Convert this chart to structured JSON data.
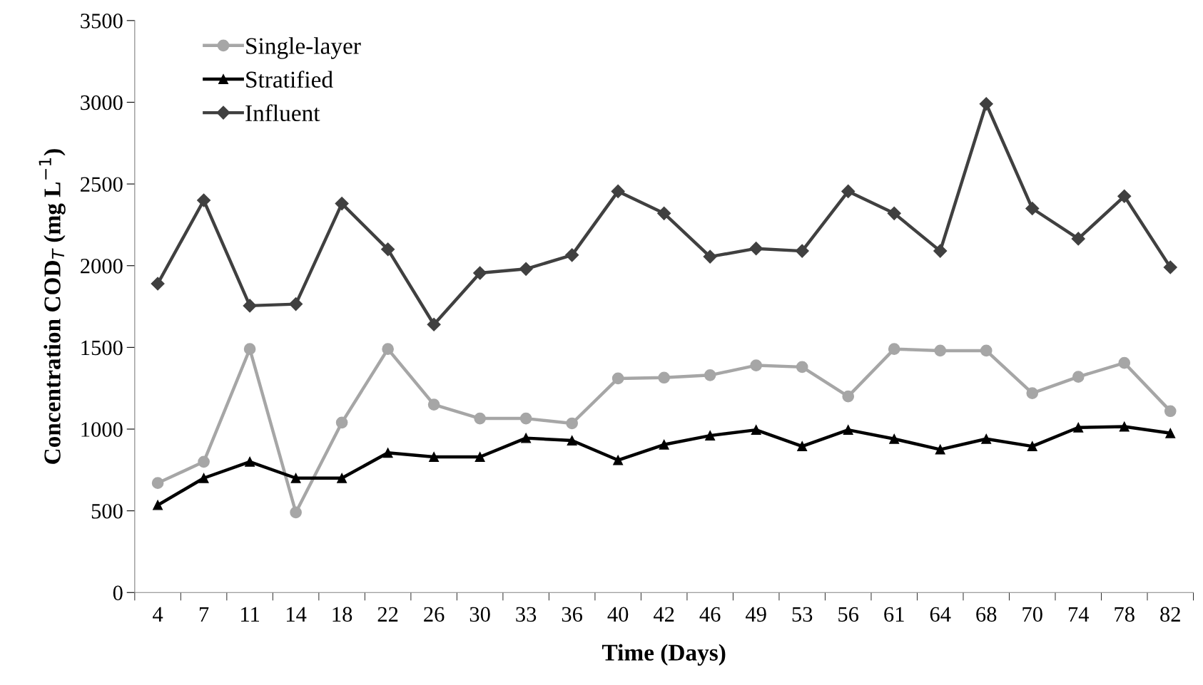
{
  "chart_data": {
    "type": "line",
    "xlabel": "Time (Days)",
    "ylabel": "Concentration COD$_{T}$ (mg L$^{−1}$)",
    "categories": [
      "4",
      "7",
      "11",
      "14",
      "18",
      "22",
      "26",
      "30",
      "33",
      "36",
      "40",
      "42",
      "46",
      "49",
      "53",
      "56",
      "61",
      "64",
      "68",
      "70",
      "74",
      "78",
      "82"
    ],
    "ylim": [
      0,
      3500
    ],
    "yticks": [
      0,
      500,
      1000,
      1500,
      2000,
      2500,
      3000,
      3500
    ],
    "grid": false,
    "legend": "top left",
    "series": [
      {
        "name": "Single-layer",
        "color": "#a6a6a6",
        "marker": "circle",
        "values": [
          670,
          800,
          1490,
          490,
          1040,
          1490,
          1150,
          1065,
          1065,
          1035,
          1310,
          1315,
          1330,
          1390,
          1380,
          1200,
          1490,
          1480,
          1480,
          1220,
          1320,
          1405,
          1110
        ]
      },
      {
        "name": "Stratified",
        "color": "#000000",
        "marker": "triangle",
        "values": [
          535,
          700,
          800,
          700,
          700,
          855,
          830,
          830,
          945,
          930,
          810,
          905,
          960,
          995,
          895,
          995,
          940,
          875,
          940,
          895,
          1010,
          1015,
          975
        ]
      },
      {
        "name": "Influent",
        "color": "#404040",
        "marker": "diamond",
        "values": [
          1890,
          2400,
          1755,
          1765,
          2380,
          2100,
          1640,
          1955,
          1980,
          2065,
          2455,
          2320,
          2055,
          2105,
          2090,
          2455,
          2320,
          2090,
          2990,
          2350,
          2165,
          2425,
          1990
        ]
      }
    ]
  }
}
